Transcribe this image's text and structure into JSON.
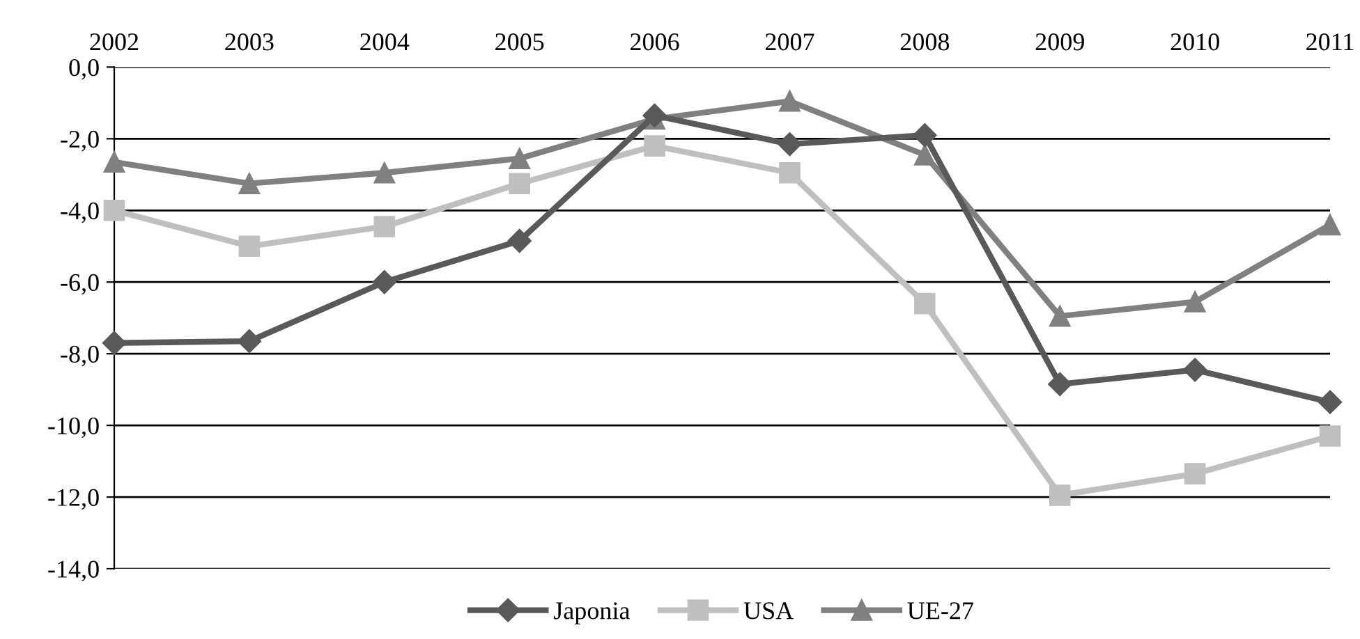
{
  "chart_data": {
    "type": "line",
    "categories": [
      "2002",
      "2003",
      "2004",
      "2005",
      "2006",
      "2007",
      "2008",
      "2009",
      "2010",
      "2011"
    ],
    "series": [
      {
        "name": "Japonia",
        "color": "#595959",
        "marker": "diamond",
        "values": [
          -7.7,
          -7.65,
          -6.0,
          -4.85,
          -1.35,
          -2.15,
          -1.9,
          -8.85,
          -8.45,
          -9.35
        ]
      },
      {
        "name": "USA",
        "color": "#bfbfbf",
        "marker": "square",
        "values": [
          -4.0,
          -5.0,
          -4.45,
          -3.25,
          -2.2,
          -2.95,
          -6.6,
          -11.95,
          -11.35,
          -10.3
        ]
      },
      {
        "name": "UE-27",
        "color": "#808080",
        "marker": "triangle",
        "values": [
          -2.65,
          -3.25,
          -2.95,
          -2.55,
          -1.45,
          -0.95,
          -2.45,
          -6.95,
          -6.55,
          -4.4
        ]
      }
    ],
    "ylim": [
      -14,
      0
    ],
    "yticks": [
      {
        "value": 0,
        "label": "0,0"
      },
      {
        "value": -2,
        "label": "-2,0"
      },
      {
        "value": -4,
        "label": "-4,0"
      },
      {
        "value": -6,
        "label": "-6,0"
      },
      {
        "value": -8,
        "label": "-8,0"
      },
      {
        "value": -10,
        "label": "-10,0"
      },
      {
        "value": -12,
        "label": "-12,0"
      },
      {
        "value": -14,
        "label": "-14,0"
      }
    ],
    "grid": "y",
    "legend": "bottom",
    "line_style": "solid"
  }
}
